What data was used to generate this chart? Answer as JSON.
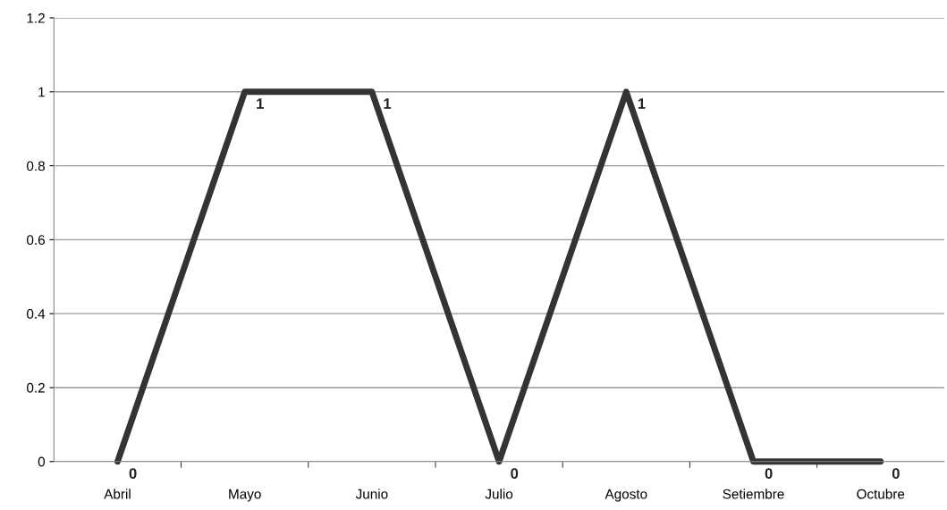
{
  "chart_data": {
    "type": "line",
    "categories": [
      "Abril",
      "Mayo",
      "Junio",
      "Julio",
      "Agosto",
      "Setiembre",
      "Octubre"
    ],
    "series": [
      {
        "color": "#333333",
        "values": [
          0,
          1,
          1,
          0,
          1,
          0,
          0
        ]
      }
    ],
    "ylim": [
      0,
      1.2
    ],
    "yticks": [
      0,
      0.2,
      0.4,
      0.6,
      0.8,
      1,
      1.2
    ],
    "grid": "y",
    "data_labels": true,
    "marker": "none",
    "line_style": "solid"
  }
}
